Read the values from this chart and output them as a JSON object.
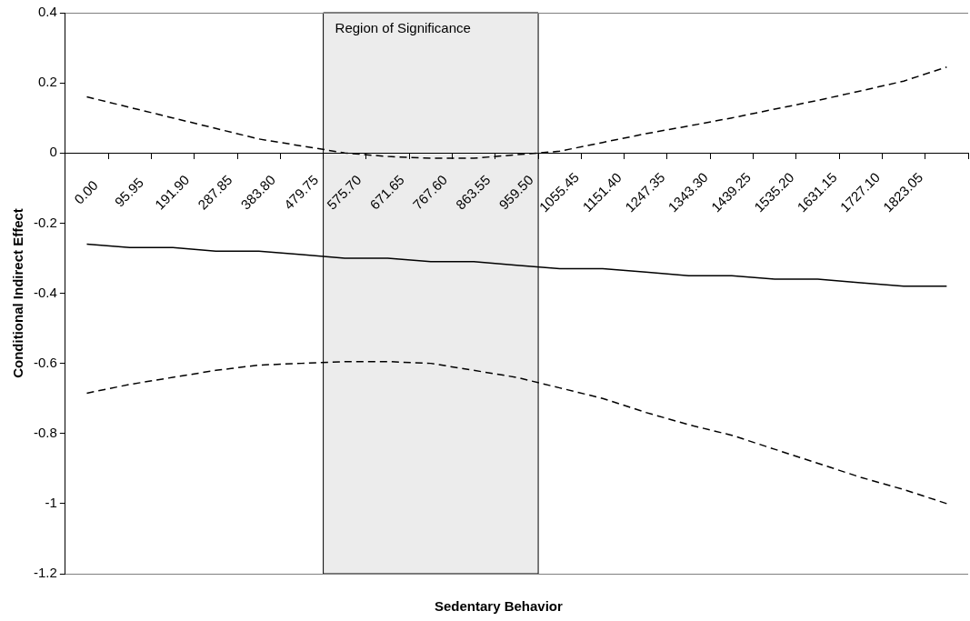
{
  "chart_data": {
    "type": "line",
    "xlabel": "Sedentary Behavior",
    "ylabel": "Conditional Indirect Effect",
    "categories": [
      "0.00",
      "95.95",
      "191.90",
      "287.85",
      "383.80",
      "479.75",
      "575.70",
      "671.65",
      "767.60",
      "863.55",
      "959.50",
      "1055.45",
      "1151.40",
      "1247.35",
      "1343.30",
      "1439.25",
      "1535.20",
      "1631.15",
      "1727.10",
      "1823.05",
      null
    ],
    "series": [
      {
        "color": "#000000",
        "line_style": "dashed",
        "values": [
          0.16,
          0.13,
          0.1,
          0.07,
          0.04,
          0.02,
          0.0,
          -0.01,
          -0.015,
          -0.015,
          -0.005,
          0.005,
          0.03,
          0.055,
          0.077,
          0.1,
          0.125,
          0.15,
          0.177,
          0.205,
          0.245
        ]
      },
      {
        "color": "#000000",
        "line_style": "solid",
        "values": [
          -0.26,
          -0.27,
          -0.27,
          -0.28,
          -0.28,
          -0.29,
          -0.3,
          -0.3,
          -0.31,
          -0.31,
          -0.32,
          -0.33,
          -0.33,
          -0.34,
          -0.35,
          -0.35,
          -0.36,
          -0.36,
          -0.37,
          -0.38,
          -0.38
        ]
      },
      {
        "color": "#000000",
        "line_style": "dashed",
        "values": [
          -0.685,
          -0.66,
          -0.64,
          -0.62,
          -0.605,
          -0.6,
          -0.595,
          -0.595,
          -0.6,
          -0.62,
          -0.64,
          -0.67,
          -0.7,
          -0.74,
          -0.775,
          -0.805,
          -0.845,
          -0.885,
          -0.925,
          -0.96,
          -1.0
        ]
      }
    ],
    "ylim": [
      -1.2,
      0.4
    ],
    "yticks": [
      -1.2,
      -1,
      -0.8,
      -0.6,
      -0.4,
      -0.2,
      0,
      0.2,
      0.4
    ],
    "bands": [
      {
        "axis": "x",
        "from": "575.70",
        "to": "959.50",
        "label": "Region of Significance",
        "color": "#ececec"
      }
    ],
    "grid": false,
    "legend": false,
    "marker": "none"
  }
}
